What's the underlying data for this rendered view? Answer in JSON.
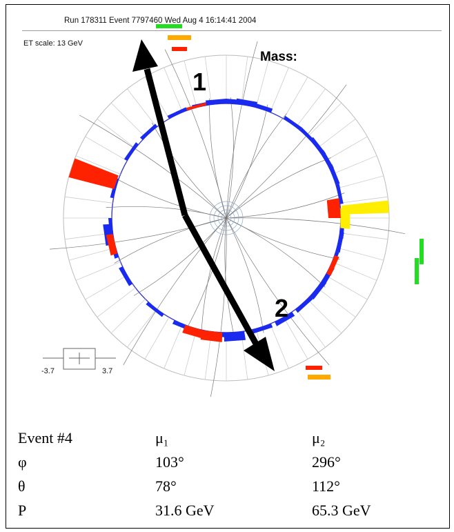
{
  "header": {
    "run_line": "Run 178311 Event 7797460 Wed Aug  4 16:14:41 2004",
    "et_scale": "ET scale: 13 GeV",
    "mass_label": "Mass:"
  },
  "arrows": {
    "label_1": "1",
    "label_2": "2"
  },
  "scale_bar": {
    "left": "-3.7",
    "right": "3.7"
  },
  "colors": {
    "em_tower": "#ff2200",
    "had_tower": "#1a2aee",
    "yellow_tower": "#ffee00",
    "green_marker": "#22dd22",
    "orange_marker": "#ffaa00",
    "arrow": "#000000"
  },
  "table": {
    "header": [
      "Event #4",
      "μ₁",
      "μ₂"
    ],
    "rows": [
      [
        "φ",
        "103°",
        "296°"
      ],
      [
        "θ",
        "78°",
        "112°"
      ],
      [
        "P",
        "31.6 GeV",
        "65.3 GeV"
      ]
    ]
  }
}
